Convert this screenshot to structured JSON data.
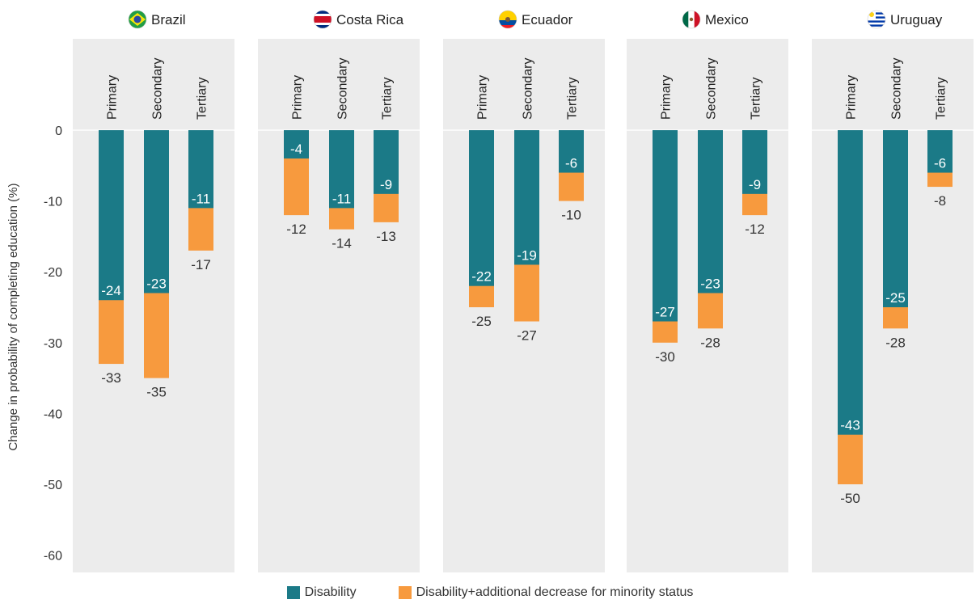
{
  "chart_data": {
    "type": "bar",
    "subtype": "overlapping-stacked, faceted by country",
    "ylabel": "Change in probability of completing education (%)",
    "ylim": [
      -60,
      0
    ],
    "yticks": [
      0,
      -10,
      -20,
      -30,
      -40,
      -50,
      -60
    ],
    "categories": [
      "Primary",
      "Secondary",
      "Tertiary"
    ],
    "panels": [
      {
        "country": "Brazil",
        "flag_icon": "brazil-flag-icon",
        "disability": [
          -24,
          -23,
          -11
        ],
        "combined": [
          -33,
          -35,
          -17
        ]
      },
      {
        "country": "Costa Rica",
        "flag_icon": "costa-rica-flag-icon",
        "disability": [
          -4,
          -11,
          -9
        ],
        "combined": [
          -12,
          -14,
          -13
        ]
      },
      {
        "country": "Ecuador",
        "flag_icon": "ecuador-flag-icon",
        "disability": [
          -22,
          -19,
          -6
        ],
        "combined": [
          -25,
          -27,
          -10
        ]
      },
      {
        "country": "Mexico",
        "flag_icon": "mexico-flag-icon",
        "disability": [
          -27,
          -23,
          -9
        ],
        "combined": [
          -30,
          -28,
          -12
        ]
      },
      {
        "country": "Uruguay",
        "flag_icon": "uruguay-flag-icon",
        "disability": [
          -43,
          -25,
          -6
        ],
        "combined": [
          -50,
          -28,
          -8
        ]
      }
    ],
    "series": [
      {
        "key": "disability",
        "name": "Disability",
        "color": "#1b7a87"
      },
      {
        "key": "combined",
        "name": "Disability+additional decrease for minority status",
        "color": "#f79a3e"
      }
    ],
    "panel_background": "#ececec",
    "legend_position": "bottom"
  }
}
